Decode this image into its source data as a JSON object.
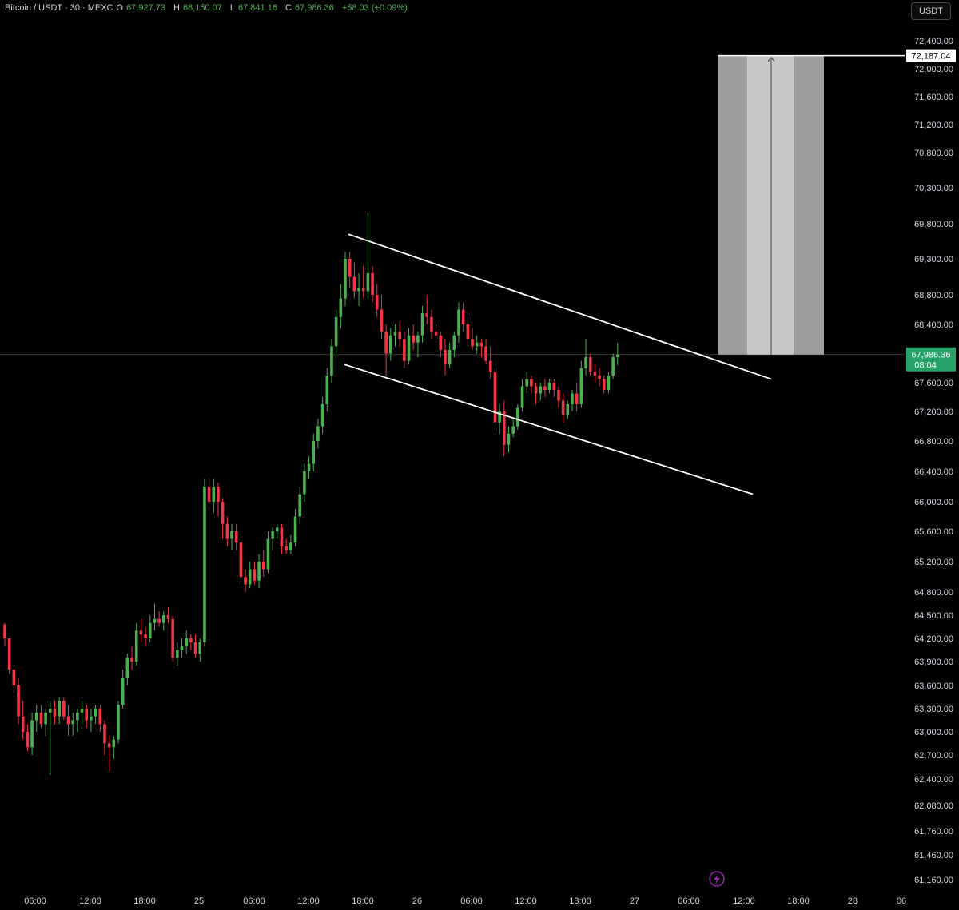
{
  "header": {
    "symbol": "Bitcoin / USDT · 30 · MEXC",
    "open_label": "O",
    "open": "67,927.73",
    "high_label": "H",
    "high": "68,150.07",
    "low_label": "L",
    "low": "67,841.16",
    "close_label": "C",
    "close": "67,986.36",
    "change": "+58.03 (+0.09%)"
  },
  "currency_button": "USDT",
  "colors": {
    "background": "#000000",
    "up": "#4caf50",
    "down": "#f23645",
    "price_tag": "#26a269",
    "target_box": "#b8b8b8",
    "trendline": "#ffffff",
    "axis_text": "#d1d4dc"
  },
  "chart_data": {
    "type": "candlestick",
    "price_axis_labels": [
      "72,400.00",
      "72,000.00",
      "71,600.00",
      "71,200.00",
      "70,800.00",
      "70,300.00",
      "69,800.00",
      "69,300.00",
      "68,800.00",
      "68,400.00",
      "67,600.00",
      "67,200.00",
      "66,800.00",
      "66,400.00",
      "66,000.00",
      "65,600.00",
      "65,200.00",
      "64,800.00",
      "64,500.00",
      "64,200.00",
      "63,900.00",
      "63,600.00",
      "63,300.00",
      "63,000.00",
      "62,700.00",
      "62,400.00",
      "62,080.00",
      "61,760.00",
      "61,460.00",
      "61,160.00"
    ],
    "time_axis_labels": [
      "06:00",
      "12:00",
      "18:00",
      "25",
      "06:00",
      "12:00",
      "18:00",
      "26",
      "06:00",
      "12:00",
      "18:00",
      "27",
      "06:00",
      "12:00",
      "18:00",
      "28",
      "06"
    ],
    "current_price": "67,986.36",
    "countdown": "08:04",
    "target_price": "72,187.04",
    "candles_ohlc": [
      [
        64380,
        64400,
        64100,
        64200
      ],
      [
        64200,
        64200,
        63750,
        63800
      ],
      [
        63800,
        63850,
        63500,
        63600
      ],
      [
        63600,
        63700,
        63100,
        63200
      ],
      [
        63200,
        63400,
        62900,
        63000
      ],
      [
        63000,
        63100,
        62750,
        62800
      ],
      [
        62800,
        63250,
        62700,
        63150
      ],
      [
        63150,
        63350,
        63000,
        63250
      ],
      [
        63250,
        63350,
        63050,
        63100
      ],
      [
        63100,
        63300,
        62950,
        63250
      ],
      [
        63250,
        63400,
        62450,
        63300
      ],
      [
        63300,
        63400,
        63100,
        63200
      ],
      [
        63200,
        63450,
        63100,
        63400
      ],
      [
        63400,
        63450,
        63150,
        63200
      ],
      [
        63200,
        63350,
        62950,
        63100
      ],
      [
        63100,
        63250,
        62950,
        63150
      ],
      [
        63150,
        63300,
        63000,
        63250
      ],
      [
        63250,
        63400,
        63100,
        63300
      ],
      [
        63300,
        63350,
        63050,
        63150
      ],
      [
        63150,
        63300,
        63000,
        63200
      ],
      [
        63200,
        63350,
        63100,
        63300
      ],
      [
        63300,
        63350,
        63000,
        63100
      ],
      [
        63100,
        63150,
        62700,
        62850
      ],
      [
        62850,
        62950,
        62500,
        62800
      ],
      [
        62800,
        62950,
        62650,
        62900
      ],
      [
        62900,
        63400,
        62850,
        63350
      ],
      [
        63350,
        63800,
        63300,
        63700
      ],
      [
        63700,
        64000,
        63600,
        63950
      ],
      [
        63950,
        64100,
        63800,
        63900
      ],
      [
        63900,
        64400,
        63850,
        64300
      ],
      [
        64300,
        64450,
        64150,
        64250
      ],
      [
        64250,
        64350,
        64100,
        64200
      ],
      [
        64200,
        64500,
        64150,
        64400
      ],
      [
        64400,
        64650,
        64300,
        64450
      ],
      [
        64450,
        64550,
        64350,
        64400
      ],
      [
        64400,
        64550,
        64300,
        64500
      ],
      [
        64500,
        64600,
        64400,
        64450
      ],
      [
        64450,
        64500,
        63900,
        63950
      ],
      [
        63950,
        64150,
        63850,
        64050
      ],
      [
        64050,
        64200,
        63950,
        64100
      ],
      [
        64100,
        64300,
        64000,
        64200
      ],
      [
        64200,
        64250,
        64050,
        64150
      ],
      [
        64150,
        64250,
        63950,
        64000
      ],
      [
        64000,
        64200,
        63900,
        64150
      ],
      [
        64150,
        66300,
        64100,
        66200
      ],
      [
        66200,
        66300,
        65900,
        66000
      ],
      [
        66000,
        66300,
        65850,
        66200
      ],
      [
        66200,
        66250,
        65800,
        66000
      ],
      [
        66000,
        66050,
        65500,
        65700
      ],
      [
        65700,
        65800,
        65400,
        65500
      ],
      [
        65500,
        65700,
        65350,
        65600
      ],
      [
        65600,
        65700,
        65350,
        65450
      ],
      [
        65450,
        65500,
        64900,
        65000
      ],
      [
        65000,
        65100,
        64800,
        64900
      ],
      [
        64900,
        65200,
        64850,
        65100
      ],
      [
        65100,
        65200,
        64900,
        64950
      ],
      [
        64950,
        65300,
        64850,
        65200
      ],
      [
        65200,
        65350,
        65000,
        65100
      ],
      [
        65100,
        65600,
        65050,
        65500
      ],
      [
        65500,
        65650,
        65350,
        65600
      ],
      [
        65600,
        65700,
        65500,
        65650
      ],
      [
        65650,
        65700,
        65300,
        65400
      ],
      [
        65400,
        65500,
        65300,
        65350
      ],
      [
        65350,
        65550,
        65300,
        65450
      ],
      [
        65450,
        65900,
        65400,
        65800
      ],
      [
        65800,
        66200,
        65700,
        66100
      ],
      [
        66100,
        66500,
        66000,
        66400
      ],
      [
        66400,
        66600,
        66300,
        66500
      ],
      [
        66500,
        66900,
        66400,
        66800
      ],
      [
        66800,
        67100,
        66700,
        67000
      ],
      [
        67000,
        67400,
        66900,
        67300
      ],
      [
        67300,
        67800,
        67200,
        67700
      ],
      [
        67700,
        68200,
        67600,
        68100
      ],
      [
        68100,
        68600,
        68000,
        68500
      ],
      [
        68500,
        68950,
        68350,
        68750
      ],
      [
        68750,
        69400,
        68650,
        69300
      ],
      [
        69300,
        69400,
        68900,
        69050
      ],
      [
        69050,
        69250,
        68750,
        68850
      ],
      [
        68850,
        69100,
        68650,
        68900
      ],
      [
        68900,
        69200,
        68750,
        68850
      ],
      [
        68850,
        69950,
        68750,
        69100
      ],
      [
        69100,
        69200,
        68700,
        68800
      ],
      [
        68800,
        68950,
        68500,
        68600
      ],
      [
        68600,
        68800,
        68200,
        68300
      ],
      [
        68300,
        68400,
        67700,
        68000
      ],
      [
        68000,
        68350,
        67900,
        68250
      ],
      [
        68250,
        68400,
        68100,
        68300
      ],
      [
        68300,
        68450,
        68100,
        68200
      ],
      [
        68200,
        68300,
        67800,
        67900
      ],
      [
        67900,
        68350,
        67850,
        68250
      ],
      [
        68250,
        68400,
        68050,
        68150
      ],
      [
        68150,
        68300,
        67950,
        68250
      ],
      [
        68250,
        68650,
        68150,
        68550
      ],
      [
        68550,
        68800,
        68400,
        68500
      ],
      [
        68500,
        68600,
        68200,
        68300
      ],
      [
        68300,
        68400,
        68150,
        68250
      ],
      [
        68250,
        68300,
        67950,
        68050
      ],
      [
        68050,
        68200,
        67700,
        67850
      ],
      [
        67850,
        68150,
        67800,
        68050
      ],
      [
        68050,
        68300,
        67950,
        68250
      ],
      [
        68250,
        68700,
        68150,
        68600
      ],
      [
        68600,
        68700,
        68300,
        68400
      ],
      [
        68400,
        68500,
        68100,
        68200
      ],
      [
        68200,
        68350,
        68050,
        68100
      ],
      [
        68100,
        68250,
        68000,
        68150
      ],
      [
        68150,
        68200,
        67950,
        68100
      ],
      [
        68100,
        68200,
        67850,
        67900
      ],
      [
        67900,
        68100,
        67650,
        67750
      ],
      [
        67750,
        67800,
        66950,
        67050
      ],
      [
        67050,
        67300,
        66900,
        67200
      ],
      [
        67200,
        67350,
        66600,
        66750
      ],
      [
        66750,
        67000,
        66650,
        66900
      ],
      [
        66900,
        67100,
        66850,
        67000
      ],
      [
        67000,
        67300,
        66950,
        67250
      ],
      [
        67250,
        67650,
        67200,
        67550
      ],
      [
        67550,
        67750,
        67450,
        67650
      ],
      [
        67650,
        67700,
        67450,
        67550
      ],
      [
        67550,
        67600,
        67300,
        67450
      ],
      [
        67450,
        67600,
        67350,
        67550
      ],
      [
        67550,
        67650,
        67400,
        67500
      ],
      [
        67500,
        67650,
        67450,
        67600
      ],
      [
        67600,
        67650,
        67400,
        67500
      ],
      [
        67500,
        67550,
        67250,
        67350
      ],
      [
        67350,
        67450,
        67050,
        67150
      ],
      [
        67150,
        67350,
        67100,
        67300
      ],
      [
        67300,
        67500,
        67200,
        67450
      ],
      [
        67450,
        67600,
        67200,
        67300
      ],
      [
        67300,
        67900,
        67250,
        67800
      ],
      [
        67800,
        68200,
        67700,
        67950
      ],
      [
        67950,
        68000,
        67700,
        67750
      ],
      [
        67750,
        67850,
        67600,
        67700
      ],
      [
        67700,
        67800,
        67550,
        67650
      ],
      [
        67650,
        67700,
        67450,
        67500
      ],
      [
        67500,
        67750,
        67450,
        67700
      ],
      [
        67700,
        68000,
        67650,
        67950
      ],
      [
        67950,
        68150,
        67840,
        67986
      ]
    ],
    "trendlines": [
      {
        "from": [
          "18:00 (25)",
          69650
        ],
        "to": [
          "12:00 (27)",
          67650
        ]
      },
      {
        "from": [
          "18:00 (25)",
          67850
        ],
        "to": [
          "12:00 (27)",
          66100
        ]
      }
    ],
    "target_zone": {
      "low": 67986.36,
      "high": 72187.04
    }
  }
}
